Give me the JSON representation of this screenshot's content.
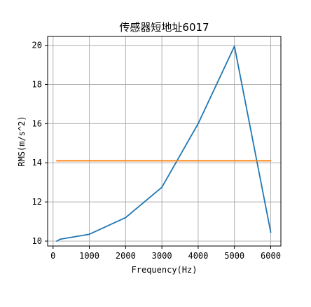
{
  "chart_data": {
    "type": "line",
    "title": "传感器短地址6017",
    "xlabel": "Frequency(Hz)",
    "ylabel": "RMS(m/s^2)",
    "xlim": [
      -150,
      6280
    ],
    "ylim": [
      9.75,
      20.45
    ],
    "xticks": [
      0,
      1000,
      2000,
      3000,
      4000,
      5000,
      6000
    ],
    "yticks": [
      10,
      12,
      14,
      16,
      18,
      20
    ],
    "grid": true,
    "series": [
      {
        "color": "#1f77b4",
        "x": [
          100,
          200,
          1000,
          2000,
          3000,
          4000,
          5000,
          6000
        ],
        "y": [
          10.0,
          10.1,
          10.35,
          11.2,
          12.75,
          16.0,
          19.95,
          10.45
        ]
      },
      {
        "color": "#ff7f0e",
        "x": [
          100,
          6000
        ],
        "y": [
          14.1,
          14.1
        ]
      }
    ]
  }
}
